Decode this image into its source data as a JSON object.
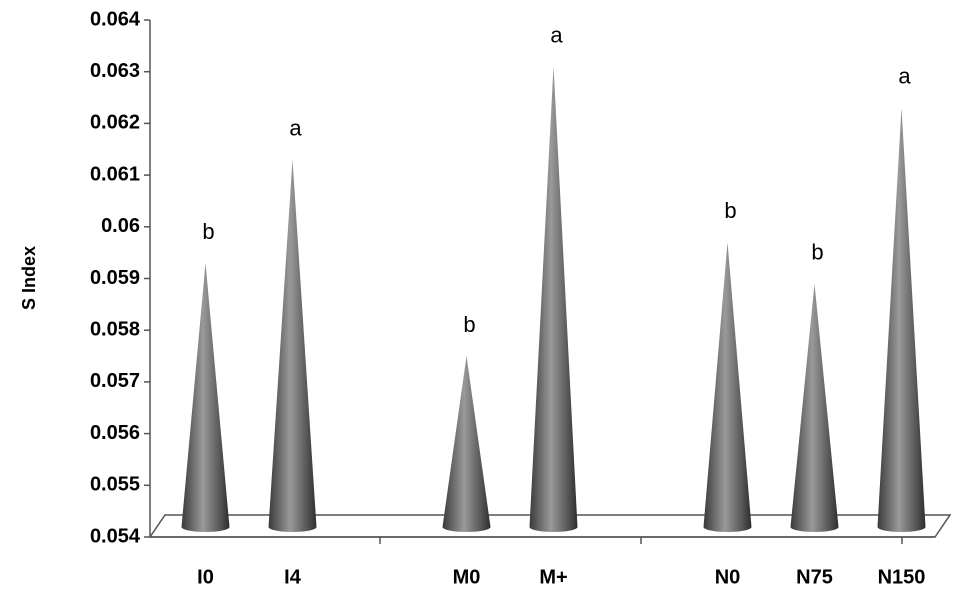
{
  "chart_data": {
    "type": "cone",
    "y_label": "S Index",
    "categories": [
      "I0",
      "I4",
      null,
      "M0",
      "M+",
      null,
      "N0",
      "N75",
      "N150"
    ],
    "values": [
      0.0593,
      0.0613,
      null,
      0.0575,
      0.0631,
      null,
      0.0597,
      0.0589,
      0.0623
    ],
    "letters": [
      "b",
      "a",
      null,
      "b",
      "a",
      null,
      "b",
      "b",
      "a"
    ],
    "color": "#666666",
    "ylim": [
      0.054,
      0.064
    ],
    "yticks": [
      0.054,
      0.055,
      0.056,
      0.057,
      0.058,
      0.059,
      0.06,
      0.061,
      0.062,
      0.063,
      0.064
    ]
  }
}
